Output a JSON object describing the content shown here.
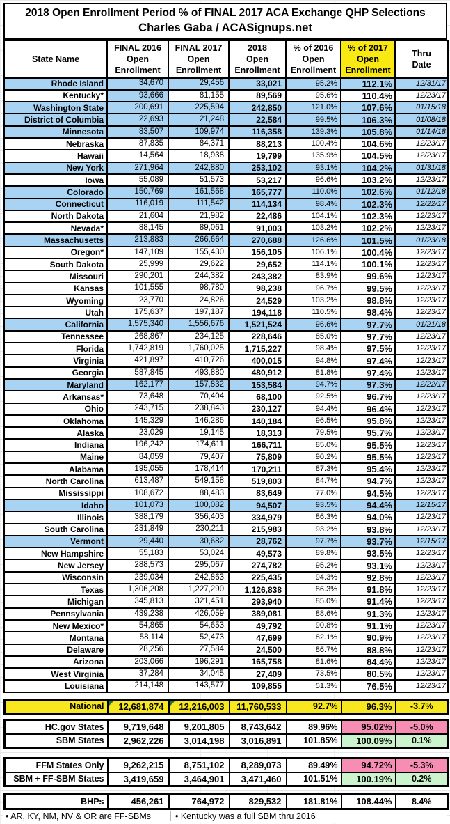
{
  "title": {
    "line1": "2018 Open Enrollment Period % of FINAL 2017 ACA Exchange QHP Selections",
    "line2": "Charles Gaba / ACASignups.net"
  },
  "colors": {
    "sbm_row_highlight_blue": "#A9D3F3",
    "header_highlight_yellow": "#F9E812",
    "national_row_yellow": "#F8E71F",
    "negative_tint_pink": "#F78DB2",
    "positive_tint_green": "#CCF4CC",
    "cell_note_triangle_green": "#1F7244",
    "border_black": "#000000"
  },
  "chart_data": {
    "type": "table",
    "title": "2018 Open Enrollment Period % of FINAL 2017 ACA Exchange QHP Selections",
    "subtitle": "Charles Gaba / ACASignups.net",
    "columns": [
      "State Name",
      "FINAL 2016\nOpen\nEnrollment",
      "FINAL 2017\nOpen\nEnrollment",
      "2018\nOpen\nEnrollment",
      "% of 2016\nOpen\nEnrollment",
      "% of 2017\nOpen\nEnrollment",
      "Thru\nDate"
    ],
    "rows": [
      {
        "cells": [
          "Rhode Island",
          "34,670",
          "29,456",
          "33,021",
          "95.2%",
          "112.1%",
          "12/31/17"
        ],
        "hl": "blue"
      },
      {
        "cells": [
          "Kentucky*",
          "93,666",
          "81,155",
          "89,569",
          "95.6%",
          "110.4%",
          "12/23/17"
        ],
        "hl": "ky"
      },
      {
        "cells": [
          "Washington State",
          "200,691",
          "225,594",
          "242,850",
          "121.0%",
          "107.6%",
          "01/15/18"
        ],
        "hl": "blue"
      },
      {
        "cells": [
          "District of Columbia",
          "22,693",
          "21,248",
          "22,584",
          "99.5%",
          "106.3%",
          "01/08/18"
        ],
        "hl": "blue"
      },
      {
        "cells": [
          "Minnesota",
          "83,507",
          "109,974",
          "116,358",
          "139.3%",
          "105.8%",
          "01/14/18"
        ],
        "hl": "blue"
      },
      {
        "cells": [
          "Nebraska",
          "87,835",
          "84,371",
          "88,213",
          "100.4%",
          "104.6%",
          "12/23/17"
        ]
      },
      {
        "cells": [
          "Hawaii",
          "14,564",
          "18,938",
          "19,799",
          "135.9%",
          "104.5%",
          "12/23/17"
        ]
      },
      {
        "cells": [
          "New York",
          "271,964",
          "242,880",
          "253,102",
          "93.1%",
          "104.2%",
          "01/31/18"
        ],
        "hl": "blue"
      },
      {
        "cells": [
          "Iowa",
          "55,089",
          "51,573",
          "53,217",
          "96.6%",
          "103.2%",
          "12/23/17"
        ]
      },
      {
        "cells": [
          "Colorado",
          "150,769",
          "161,568",
          "165,777",
          "110.0%",
          "102.6%",
          "01/12/18"
        ],
        "hl": "blue"
      },
      {
        "cells": [
          "Connecticut",
          "116,019",
          "111,542",
          "114,134",
          "98.4%",
          "102.3%",
          "12/22/17"
        ],
        "hl": "blue"
      },
      {
        "cells": [
          "North Dakota",
          "21,604",
          "21,982",
          "22,486",
          "104.1%",
          "102.3%",
          "12/23/17"
        ]
      },
      {
        "cells": [
          "Nevada*",
          "88,145",
          "89,061",
          "91,003",
          "103.2%",
          "102.2%",
          "12/23/17"
        ]
      },
      {
        "cells": [
          "Massachusetts",
          "213,883",
          "266,664",
          "270,688",
          "126.6%",
          "101.5%",
          "01/23/18"
        ],
        "hl": "blue"
      },
      {
        "cells": [
          "Oregon*",
          "147,109",
          "155,430",
          "156,105",
          "106.1%",
          "100.4%",
          "12/23/17"
        ]
      },
      {
        "cells": [
          "South Dakota",
          "25,999",
          "29,622",
          "29,652",
          "114.1%",
          "100.1%",
          "12/23/17"
        ]
      },
      {
        "cells": [
          "Missouri",
          "290,201",
          "244,382",
          "243,382",
          "83.9%",
          "99.6%",
          "12/23/17"
        ]
      },
      {
        "cells": [
          "Kansas",
          "101,555",
          "98,780",
          "98,238",
          "96.7%",
          "99.5%",
          "12/23/17"
        ]
      },
      {
        "cells": [
          "Wyoming",
          "23,770",
          "24,826",
          "24,529",
          "103.2%",
          "98.8%",
          "12/23/17"
        ]
      },
      {
        "cells": [
          "Utah",
          "175,637",
          "197,187",
          "194,118",
          "110.5%",
          "98.4%",
          "12/23/17"
        ]
      },
      {
        "cells": [
          "California",
          "1,575,340",
          "1,556,676",
          "1,521,524",
          "96.6%",
          "97.7%",
          "01/21/18"
        ],
        "hl": "blue"
      },
      {
        "cells": [
          "Tennessee",
          "268,867",
          "234,125",
          "228,646",
          "85.0%",
          "97.7%",
          "12/23/17"
        ]
      },
      {
        "cells": [
          "Florida",
          "1,742,819",
          "1,760,025",
          "1,715,227",
          "98.4%",
          "97.5%",
          "12/23/17"
        ]
      },
      {
        "cells": [
          "Virginia",
          "421,897",
          "410,726",
          "400,015",
          "94.8%",
          "97.4%",
          "12/23/17"
        ]
      },
      {
        "cells": [
          "Georgia",
          "587,845",
          "493,880",
          "480,912",
          "81.8%",
          "97.4%",
          "12/23/17"
        ]
      },
      {
        "cells": [
          "Maryland",
          "162,177",
          "157,832",
          "153,584",
          "94.7%",
          "97.3%",
          "12/22/17"
        ],
        "hl": "blue"
      },
      {
        "cells": [
          "Arkansas*",
          "73,648",
          "70,404",
          "68,100",
          "92.5%",
          "96.7%",
          "12/23/17"
        ]
      },
      {
        "cells": [
          "Ohio",
          "243,715",
          "238,843",
          "230,127",
          "94.4%",
          "96.4%",
          "12/23/17"
        ]
      },
      {
        "cells": [
          "Oklahoma",
          "145,329",
          "146,286",
          "140,184",
          "96.5%",
          "95.8%",
          "12/23/17"
        ]
      },
      {
        "cells": [
          "Alaska",
          "23,029",
          "19,145",
          "18,313",
          "79.5%",
          "95.7%",
          "12/23/17"
        ]
      },
      {
        "cells": [
          "Indiana",
          "196,242",
          "174,611",
          "166,711",
          "85.0%",
          "95.5%",
          "12/23/17"
        ]
      },
      {
        "cells": [
          "Maine",
          "84,059",
          "79,407",
          "75,809",
          "90.2%",
          "95.5%",
          "12/23/17"
        ]
      },
      {
        "cells": [
          "Alabama",
          "195,055",
          "178,414",
          "170,211",
          "87.3%",
          "95.4%",
          "12/23/17"
        ]
      },
      {
        "cells": [
          "North Carolina",
          "613,487",
          "549,158",
          "519,803",
          "84.7%",
          "94.7%",
          "12/23/17"
        ]
      },
      {
        "cells": [
          "Mississippi",
          "108,672",
          "88,483",
          "83,649",
          "77.0%",
          "94.5%",
          "12/23/17"
        ]
      },
      {
        "cells": [
          "Idaho",
          "101,073",
          "100,082",
          "94,507",
          "93.5%",
          "94.4%",
          "12/15/17"
        ],
        "hl": "blue"
      },
      {
        "cells": [
          "Illinois",
          "388,179",
          "356,403",
          "334,979",
          "86.3%",
          "94.0%",
          "12/23/17"
        ]
      },
      {
        "cells": [
          "South Carolina",
          "231,849",
          "230,211",
          "215,983",
          "93.2%",
          "93.8%",
          "12/23/17"
        ]
      },
      {
        "cells": [
          "Vermont",
          "29,440",
          "30,682",
          "28,762",
          "97.7%",
          "93.7%",
          "12/15/17"
        ],
        "hl": "blue"
      },
      {
        "cells": [
          "New Hampshire",
          "55,183",
          "53,024",
          "49,573",
          "89.8%",
          "93.5%",
          "12/23/17"
        ]
      },
      {
        "cells": [
          "New Jersey",
          "288,573",
          "295,067",
          "274,782",
          "95.2%",
          "93.1%",
          "12/23/17"
        ]
      },
      {
        "cells": [
          "Wisconsin",
          "239,034",
          "242,863",
          "225,435",
          "94.3%",
          "92.8%",
          "12/23/17"
        ]
      },
      {
        "cells": [
          "Texas",
          "1,306,208",
          "1,227,290",
          "1,126,838",
          "86.3%",
          "91.8%",
          "12/23/17"
        ]
      },
      {
        "cells": [
          "Michigan",
          "345,813",
          "321,451",
          "293,940",
          "85.0%",
          "91.4%",
          "12/23/17"
        ]
      },
      {
        "cells": [
          "Pennsylvania",
          "439,238",
          "426,059",
          "389,081",
          "88.6%",
          "91.3%",
          "12/23/17"
        ]
      },
      {
        "cells": [
          "New Mexico*",
          "54,865",
          "54,653",
          "49,792",
          "90.8%",
          "91.1%",
          "12/23/17"
        ]
      },
      {
        "cells": [
          "Montana",
          "58,114",
          "52,473",
          "47,699",
          "82.1%",
          "90.9%",
          "12/23/17"
        ]
      },
      {
        "cells": [
          "Delaware",
          "28,256",
          "27,584",
          "24,500",
          "86.7%",
          "88.8%",
          "12/23/17"
        ]
      },
      {
        "cells": [
          "Arizona",
          "203,066",
          "196,291",
          "165,758",
          "81.6%",
          "84.4%",
          "12/23/17"
        ]
      },
      {
        "cells": [
          "West Virginia",
          "37,284",
          "34,045",
          "27,409",
          "73.5%",
          "80.5%",
          "12/23/17"
        ]
      },
      {
        "cells": [
          "Louisiana",
          "214,148",
          "143,577",
          "109,855",
          "51.3%",
          "76.5%",
          "12/23/17"
        ]
      }
    ],
    "summary_blocks": [
      {
        "rows": [
          {
            "cells": [
              "National",
              "12,681,874",
              "12,216,003",
              "11,760,533",
              "92.7%",
              "96.3%",
              "-3.7%"
            ],
            "style": "national",
            "notes": [
              1,
              2
            ]
          }
        ]
      },
      {
        "rows": [
          {
            "cells": [
              "HC.gov States",
              "9,719,648",
              "9,201,805",
              "8,743,642",
              "89.96%",
              "95.02%",
              "-5.0%"
            ],
            "tint": "pink"
          },
          {
            "cells": [
              "SBM States",
              "2,962,226",
              "3,014,198",
              "3,016,891",
              "101.85%",
              "100.09%",
              "0.1%"
            ],
            "tint": "green"
          }
        ]
      },
      {
        "rows": [
          {
            "cells": [
              "FFM States Only",
              "9,262,215",
              "8,751,102",
              "8,289,073",
              "89.49%",
              "94.72%",
              "-5.3%"
            ],
            "tint": "pink"
          },
          {
            "cells": [
              "SBM + FF-SBM States",
              "3,419,659",
              "3,464,901",
              "3,471,460",
              "101.51%",
              "100.19%",
              "0.2%"
            ],
            "tint": "green"
          }
        ]
      },
      {
        "rows": [
          {
            "cells": [
              "BHPs",
              "456,261",
              "764,972",
              "829,532",
              "181.81%",
              "108.44%",
              "8.4%"
            ]
          }
        ]
      }
    ],
    "footnotes": [
      "• AR, KY, NM, NV & OR are FF-SBMs",
      "• Kentucky was a full SBM thru 2016"
    ]
  }
}
